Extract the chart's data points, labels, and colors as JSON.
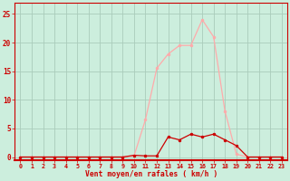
{
  "x_labels": [
    "0",
    "1",
    "2",
    "3",
    "4",
    "5",
    "6",
    "7",
    "8",
    "9",
    "10",
    "11",
    "12",
    "13",
    "14",
    "15",
    "16",
    "17",
    "18",
    "19",
    "20",
    "21",
    "22",
    "23"
  ],
  "x_values": [
    0,
    1,
    2,
    3,
    4,
    5,
    6,
    7,
    8,
    9,
    10,
    11,
    12,
    13,
    14,
    15,
    16,
    17,
    18,
    19,
    20,
    21,
    22,
    23
  ],
  "rafales": [
    0,
    0,
    0,
    0,
    0,
    0,
    0,
    0,
    0,
    0,
    0.2,
    6.5,
    15.5,
    18,
    19.5,
    19.5,
    24,
    21,
    8,
    0.5,
    0,
    0,
    0,
    0
  ],
  "moyen": [
    0,
    0,
    0,
    0,
    0,
    0,
    0,
    0,
    0,
    0,
    0.3,
    0.2,
    0.2,
    3.5,
    3,
    4,
    3.5,
    4,
    3,
    2,
    0,
    0,
    0,
    0
  ],
  "line_color_rafales": "#ffaaaa",
  "line_color_moyen": "#cc0000",
  "marker_color_rafales": "#ffaaaa",
  "marker_color_moyen": "#cc0000",
  "bg_color": "#cceedd",
  "grid_color": "#aaccbb",
  "xlabel": "Vent moyen/en rafales ( km/h )",
  "xlabel_color": "#cc0000",
  "tick_color": "#cc0000",
  "yticks": [
    0,
    5,
    10,
    15,
    20,
    25
  ],
  "ylim": [
    -0.5,
    27
  ],
  "xlim": [
    -0.5,
    23.5
  ],
  "axis_color": "#cc0000"
}
